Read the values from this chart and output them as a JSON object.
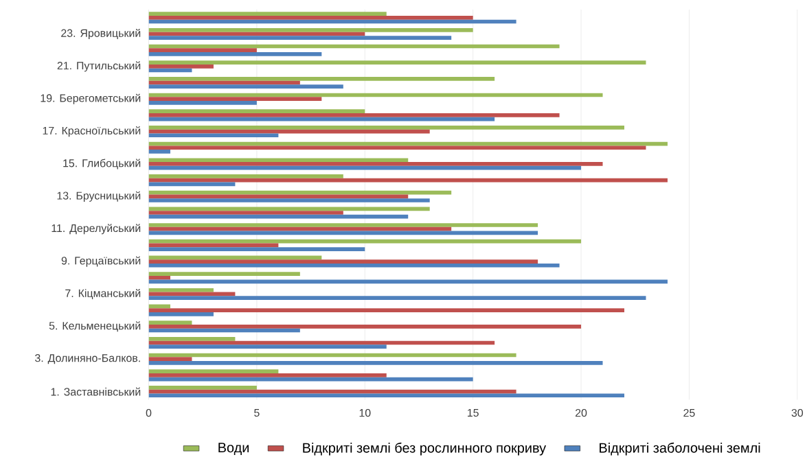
{
  "chart_data": {
    "type": "bar",
    "orientation": "horizontal",
    "categories": [
      null,
      "23. Яровицький",
      null,
      "21. Путильський",
      null,
      "19. Берегометський",
      null,
      "17. Красноїльський",
      null,
      "15. Глибоцький",
      null,
      "13. Брусницький",
      null,
      "11. Дерелуйський",
      null,
      "9. Герцаївський",
      null,
      "7. Кіцманський",
      null,
      "5. Кельменецький",
      null,
      "3. Долиняно-Балков.",
      null,
      "1. Заставнівський"
    ],
    "series": [
      {
        "name": "Води",
        "color": "#9bbb59",
        "values": [
          11,
          15,
          19,
          23,
          16,
          21,
          10,
          22,
          24,
          12,
          9,
          14,
          13,
          18,
          20,
          8,
          7,
          3,
          1,
          2,
          4,
          17,
          6,
          5
        ]
      },
      {
        "name": "Відкриті землі без рослинного покриву",
        "color": "#c0504d",
        "values": [
          15,
          10,
          5,
          3,
          7,
          8,
          19,
          13,
          23,
          21,
          24,
          12,
          9,
          14,
          6,
          18,
          1,
          4,
          22,
          20,
          16,
          2,
          11,
          17
        ]
      },
      {
        "name": "Відкриті заболочені землі",
        "color": "#4f81bd",
        "values": [
          17,
          14,
          8,
          2,
          9,
          5,
          16,
          6,
          1,
          20,
          4,
          13,
          12,
          18,
          10,
          19,
          24,
          23,
          3,
          7,
          11,
          21,
          15,
          22
        ]
      }
    ],
    "xlim": [
      0,
      30
    ],
    "xticks": [
      0,
      5,
      10,
      15,
      20,
      25,
      30
    ],
    "grid": "x",
    "legend": "bottom"
  }
}
